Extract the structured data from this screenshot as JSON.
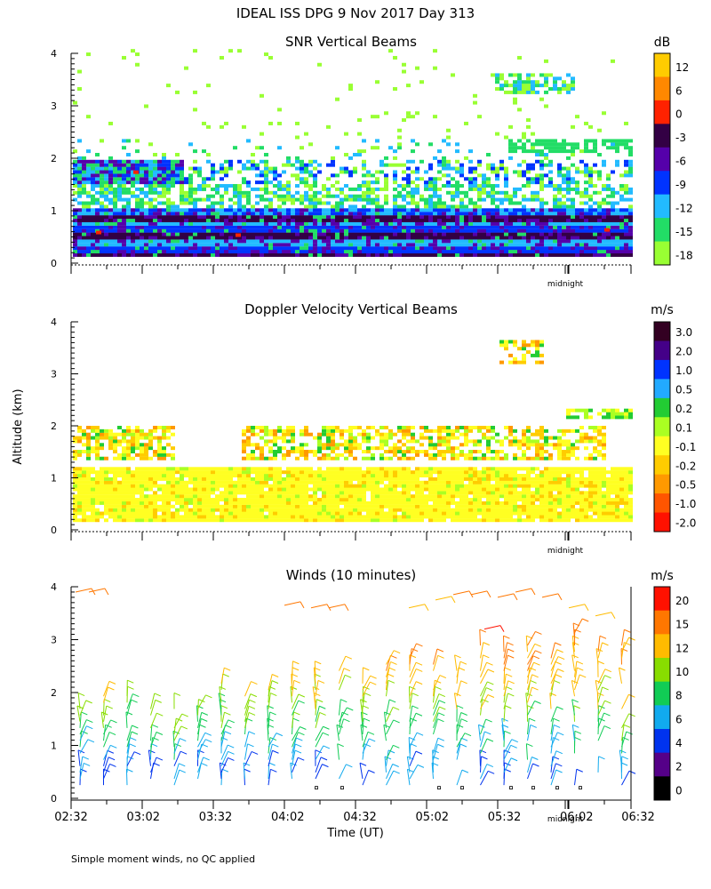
{
  "title": "IDEAL ISS DPG   9 Nov 2017 Day 313",
  "y_axis_label": "Altitude (km)",
  "x_axis_label": "Time (UT)",
  "footnote": "Simple moment winds, no QC applied",
  "midnight_label": "midnight",
  "chart_data": [
    {
      "type": "heatmap",
      "title": "SNR Vertical Beams",
      "units": "dB",
      "ylim": [
        0,
        4
      ],
      "y_ticks": [
        "0",
        "1",
        "2",
        "3",
        "4"
      ],
      "colorbar": {
        "labels": [
          "12",
          "6",
          "0",
          "-3",
          "-6",
          "-9",
          "-12",
          "-15",
          "-18"
        ],
        "colors": [
          "#ffcc00",
          "#ff8800",
          "#ff2200",
          "#330044",
          "#5500aa",
          "#0033ff",
          "#22bbff",
          "#22dd66",
          "#99ff33"
        ]
      }
    },
    {
      "type": "heatmap",
      "title": "Doppler Velocity Vertical Beams",
      "units": "m/s",
      "ylim": [
        0,
        4
      ],
      "y_ticks": [
        "0",
        "1",
        "2",
        "3",
        "4"
      ],
      "colorbar": {
        "labels": [
          "3.0",
          "2.0",
          "1.0",
          "0.5",
          "0.2",
          "0.1",
          "-0.1",
          "-0.2",
          "-0.5",
          "-1.0",
          "-2.0"
        ],
        "colors": [
          "#330022",
          "#440088",
          "#0033ff",
          "#22aaff",
          "#22cc33",
          "#aaff22",
          "#ffff22",
          "#ffcc00",
          "#ff9900",
          "#ff5500",
          "#ff1100"
        ]
      }
    },
    {
      "type": "scatter",
      "title": "Winds (10 minutes)",
      "units": "m/s",
      "ylim": [
        0,
        4
      ],
      "y_ticks": [
        "0",
        "1",
        "2",
        "3",
        "4"
      ],
      "x_ticks": [
        "02:32",
        "03:02",
        "03:32",
        "04:02",
        "04:32",
        "05:02",
        "05:32",
        "06:02",
        "06:32"
      ],
      "colorbar": {
        "labels": [
          "20",
          "15",
          "12",
          "10",
          "8",
          "6",
          "4",
          "2",
          "0"
        ],
        "colors": [
          "#ff1100",
          "#ff7700",
          "#ffbb00",
          "#88dd00",
          "#11cc55",
          "#11aaee",
          "#0033ee",
          "#550088",
          "#000000"
        ]
      }
    }
  ]
}
